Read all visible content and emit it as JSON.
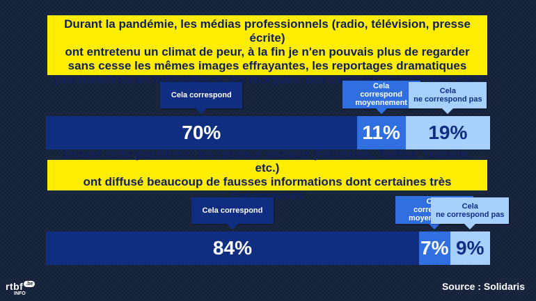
{
  "chart_data": [
    {
      "type": "bar",
      "title": "Durant la pandémie, les médias professionnels (radio, télévision, presse écrite)\nont entretenu un climat de peur, à la fin je n'en pouvais plus de regarder\nsans cesse les mêmes images effrayantes, les reportages dramatiques\n(les transferts en hélicoptères, les morgues, des camions frigorifiques, etc.)",
      "categories": [
        "Cela correspond",
        "Cela\ncorrespond\nmoyennement",
        "Cela\nne correspond pas"
      ],
      "values": [
        70,
        11,
        19
      ],
      "labels": [
        "70%",
        "11%",
        "19%"
      ]
    },
    {
      "type": "bar",
      "title": "Durant cette pandémie, les réseaux sociaux (Facebook, Twitter, Youtube, etc.)\nont diffusé beaucoup de fausses informations dont certaines très dangereuses",
      "categories": [
        "Cela correspond",
        "Cela\ncorrespond\nmoyennement",
        "Cela\nne correspond pas"
      ],
      "values": [
        84,
        7,
        9
      ],
      "labels": [
        "84%",
        "7%",
        "9%"
      ]
    }
  ],
  "colors": {
    "dark": "#0f2e82",
    "mid": "#2f6fe0",
    "light": "#a8d0ff",
    "question_bg": "#ffed00",
    "question_text": "#0f1f5c"
  },
  "logo": {
    "main": "rtbf",
    "badge": ".be",
    "sub": "INFO"
  },
  "source": "Source : Solidaris"
}
